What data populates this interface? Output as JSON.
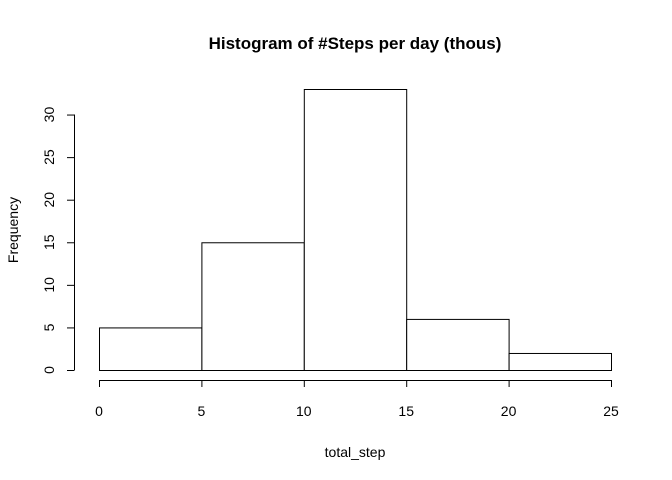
{
  "chart_data": {
    "type": "bar",
    "title": "Histogram of #Steps per day (thous)",
    "xlabel": "total_step",
    "ylabel": "Frequency",
    "bins": [
      {
        "from": 0,
        "to": 5,
        "count": 5
      },
      {
        "from": 5,
        "to": 10,
        "count": 15
      },
      {
        "from": 10,
        "to": 15,
        "count": 33
      },
      {
        "from": 15,
        "to": 20,
        "count": 6
      },
      {
        "from": 20,
        "to": 25,
        "count": 2
      }
    ],
    "xlim": [
      0,
      25
    ],
    "ylim": [
      0,
      33
    ],
    "x_ticks": [
      0,
      5,
      10,
      15,
      20,
      25
    ],
    "y_ticks": [
      0,
      5,
      10,
      15,
      20,
      25,
      30
    ],
    "grid": false,
    "legend": "none",
    "colors": {
      "bar_fill": "#ffffff",
      "bar_stroke": "#000000",
      "background": "#ffffff"
    }
  }
}
